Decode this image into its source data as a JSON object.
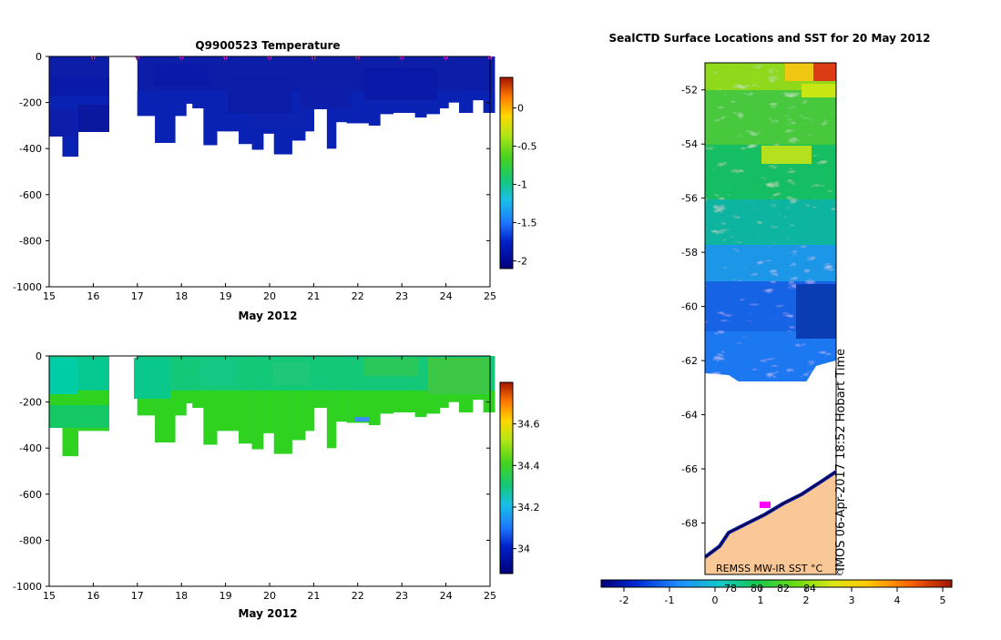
{
  "chart_data": [
    {
      "type": "heatmap",
      "title": "Q9900523  Temperature",
      "xlabel": "May 2012",
      "ylabel": "",
      "x_ticks": [
        "15",
        "16",
        "17",
        "18",
        "19",
        "20",
        "21",
        "22",
        "23",
        "24",
        "25"
      ],
      "y_ticks": [
        "0",
        "-200",
        "-400",
        "-600",
        "-800",
        "-1000"
      ],
      "xlim": [
        15,
        25
      ],
      "ylim": [
        -1000,
        0
      ],
      "colorbar": {
        "ticks": [
          "0",
          "-0.5",
          "-1",
          "-1.5",
          "-2"
        ],
        "range": [
          -2.1,
          0.4
        ]
      },
      "surface_markers_day": [
        16,
        17,
        18,
        19,
        20,
        21,
        22,
        23,
        24,
        25
      ],
      "profiles": [
        {
          "x0": 15.0,
          "x1": 15.3,
          "depth": 305
        },
        {
          "x0": 15.3,
          "x1": 15.65,
          "depth": 435
        },
        {
          "x0": 15.65,
          "x1": 16.35,
          "depth": 325
        },
        {
          "x0": 17.0,
          "x1": 17.4,
          "depth": 258
        },
        {
          "x0": 17.4,
          "x1": 17.85,
          "depth": 375
        },
        {
          "x0": 17.85,
          "x1": 18.1,
          "depth": 258
        },
        {
          "x0": 18.1,
          "x1": 18.25,
          "depth": 205
        },
        {
          "x0": 18.25,
          "x1": 18.5,
          "depth": 225
        },
        {
          "x0": 18.5,
          "x1": 18.8,
          "depth": 385
        },
        {
          "x0": 18.8,
          "x1": 19.3,
          "depth": 325
        },
        {
          "x0": 19.3,
          "x1": 19.6,
          "depth": 380
        },
        {
          "x0": 19.6,
          "x1": 19.85,
          "depth": 405
        },
        {
          "x0": 19.85,
          "x1": 20.1,
          "depth": 335
        },
        {
          "x0": 20.1,
          "x1": 20.5,
          "depth": 425
        },
        {
          "x0": 20.5,
          "x1": 20.8,
          "depth": 365
        },
        {
          "x0": 20.8,
          "x1": 21.0,
          "depth": 325
        },
        {
          "x0": 21.0,
          "x1": 21.3,
          "depth": 225
        },
        {
          "x0": 21.3,
          "x1": 21.5,
          "depth": 400
        },
        {
          "x0": 21.5,
          "x1": 21.75,
          "depth": 285
        },
        {
          "x0": 21.75,
          "x1": 22.25,
          "depth": 290
        },
        {
          "x0": 22.25,
          "x1": 22.5,
          "depth": 300
        },
        {
          "x0": 22.5,
          "x1": 22.8,
          "depth": 250
        },
        {
          "x0": 22.8,
          "x1": 23.3,
          "depth": 245
        },
        {
          "x0": 23.3,
          "x1": 23.55,
          "depth": 265
        },
        {
          "x0": 23.55,
          "x1": 23.85,
          "depth": 250
        },
        {
          "x0": 23.85,
          "x1": 24.05,
          "depth": 225
        },
        {
          "x0": 24.05,
          "x1": 24.3,
          "depth": 200
        },
        {
          "x0": 24.3,
          "x1": 24.6,
          "depth": 245
        },
        {
          "x0": 24.6,
          "x1": 24.85,
          "depth": 190
        },
        {
          "x0": 24.85,
          "x1": 25.1,
          "depth": 245
        }
      ]
    },
    {
      "type": "heatmap",
      "title": "",
      "xlabel": "May 2012",
      "ylabel": "",
      "x_ticks": [
        "15",
        "16",
        "17",
        "18",
        "19",
        "20",
        "21",
        "22",
        "23",
        "24",
        "25"
      ],
      "y_ticks": [
        "0",
        "-200",
        "-400",
        "-600",
        "-800",
        "-1000"
      ],
      "xlim": [
        15,
        25
      ],
      "ylim": [
        -1000,
        0
      ],
      "colorbar": {
        "ticks": [
          "34.6",
          "34.4",
          "34.2",
          "34"
        ],
        "range": [
          33.88,
          34.8
        ]
      }
    },
    {
      "type": "heatmap",
      "title": "SealCTD Surface Locations and SST for 20 May 2012",
      "y_ticks": [
        "-52",
        "-54",
        "-56",
        "-58",
        "-60",
        "-62",
        "-64",
        "-66",
        "-68"
      ],
      "ylim": [
        -69.9,
        -51.0
      ],
      "colorbar": {
        "ticks": [
          "-2",
          "-1",
          "0",
          "1",
          "2",
          "3",
          "4",
          "5"
        ],
        "range": [
          -2.5,
          5.2
        ],
        "overlay_ticks": [
          "78",
          "80",
          "82",
          "84"
        ]
      },
      "annotations": [
        "IMOS 06-Apr-2017 18:52 Hobart Time",
        "REMSS MW-IR SST °C",
        "©"
      ]
    }
  ]
}
